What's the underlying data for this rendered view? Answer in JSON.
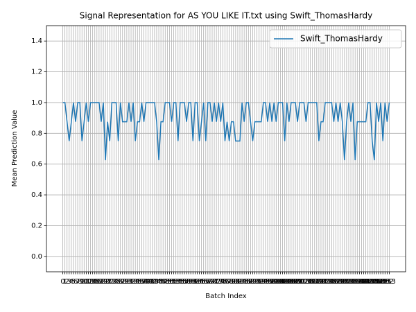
{
  "chart_data": {
    "type": "line",
    "title": "Signal Representation for AS YOU LIKE IT.txt using Swift_ThomasHardy",
    "xlabel": "Batch Index",
    "ylabel": "Mean Prediction Value",
    "x": [
      0,
      1,
      2,
      3,
      4,
      5,
      6,
      7,
      8,
      9,
      10,
      11,
      12,
      13,
      14,
      15,
      16,
      17,
      18,
      19,
      20,
      21,
      22,
      23,
      24,
      25,
      26,
      27,
      28,
      29,
      30,
      31,
      32,
      33,
      34,
      35,
      36,
      37,
      38,
      39,
      40,
      41,
      42,
      43,
      44,
      45,
      46,
      47,
      48,
      49,
      50,
      51,
      52,
      53,
      54,
      55,
      56,
      57,
      58,
      59,
      60,
      61,
      62,
      63,
      64,
      65,
      66,
      67,
      68,
      69,
      70,
      71,
      72,
      73,
      74,
      75,
      76,
      77,
      78,
      79,
      80,
      81,
      82,
      83,
      84,
      85,
      86,
      87,
      88,
      89,
      90,
      91,
      92,
      93,
      94,
      95,
      96,
      97,
      98,
      99,
      100,
      101,
      102,
      103,
      104,
      105,
      106,
      107,
      108,
      109,
      110,
      111,
      112,
      113,
      114,
      115,
      116,
      117,
      118,
      119,
      120,
      121,
      122,
      123,
      124,
      125,
      126,
      127,
      128,
      129,
      130,
      131,
      132,
      133,
      134,
      135,
      136,
      137,
      138,
      139,
      140,
      141,
      142,
      143,
      144,
      145,
      146,
      147,
      148,
      149,
      150,
      151,
      152,
      153
    ],
    "series": [
      {
        "name": "Swift_ThomasHardy",
        "color": "#1f77b4",
        "values": [
          1,
          1,
          0.875,
          0.75,
          0.875,
          1,
          0.875,
          1,
          1,
          0.75,
          0.875,
          1,
          0.875,
          1,
          1,
          1,
          1,
          1,
          0.875,
          1,
          0.625,
          0.875,
          0.75,
          1,
          1,
          1,
          0.75,
          1,
          0.875,
          0.875,
          0.875,
          1,
          0.875,
          1,
          0.75,
          0.875,
          0.875,
          1,
          0.875,
          1,
          1,
          1,
          1,
          1,
          0.875,
          0.625,
          0.875,
          0.875,
          1,
          1,
          1,
          0.875,
          1,
          1,
          0.75,
          1,
          1,
          1,
          0.875,
          1,
          1,
          0.75,
          1,
          1,
          0.75,
          0.875,
          1,
          0.75,
          1,
          1,
          0.875,
          1,
          0.875,
          1,
          0.875,
          1,
          0.75,
          0.875,
          0.75,
          0.875,
          0.875,
          0.75,
          0.75,
          0.75,
          1,
          0.875,
          1,
          1,
          0.875,
          0.75,
          0.875,
          0.875,
          0.875,
          0.875,
          1,
          1,
          0.875,
          1,
          0.875,
          1,
          0.875,
          1,
          1,
          1,
          0.75,
          1,
          0.875,
          1,
          1,
          1,
          0.875,
          1,
          1,
          1,
          0.875,
          1,
          1,
          1,
          1,
          1,
          0.75,
          0.875,
          0.875,
          1,
          1,
          1,
          1,
          0.875,
          1,
          0.875,
          1,
          0.875,
          0.625,
          0.875,
          1,
          0.875,
          1,
          0.625,
          0.875,
          0.875,
          0.875,
          0.875,
          0.875,
          1,
          1,
          0.75,
          0.625,
          1,
          0.875,
          1,
          0.75,
          1,
          0.875,
          1
        ]
      }
    ],
    "xlim": [
      -7.65,
      160.65
    ],
    "xticks": [
      0,
      1,
      2,
      3,
      4,
      5,
      6,
      7,
      8,
      9,
      10,
      11,
      12,
      13,
      14,
      15,
      16,
      17,
      18,
      19,
      20,
      21,
      22,
      23,
      24,
      25,
      26,
      27,
      28,
      29,
      30,
      31,
      32,
      33,
      34,
      35,
      36,
      37,
      38,
      39,
      40,
      41,
      42,
      43,
      44,
      45,
      46,
      47,
      48,
      49,
      50,
      51,
      52,
      53,
      54,
      55,
      56,
      57,
      58,
      59,
      60,
      61,
      62,
      63,
      64,
      65,
      66,
      67,
      68,
      69,
      70,
      71,
      72,
      73,
      74,
      75,
      76,
      77,
      78,
      79,
      80,
      81,
      82,
      83,
      84,
      85,
      86,
      87,
      88,
      89,
      90,
      91,
      92,
      93,
      94,
      95,
      96,
      97,
      98,
      99,
      100,
      101,
      102,
      103,
      104,
      105,
      106,
      107,
      108,
      109,
      110,
      111,
      112,
      113,
      114,
      115,
      116,
      117,
      118,
      119,
      120,
      121,
      122,
      123,
      124,
      125,
      126,
      127,
      128,
      129,
      130,
      131,
      132,
      133,
      134,
      135,
      136,
      137,
      138,
      139,
      140,
      141,
      142,
      143,
      144,
      145,
      146,
      147,
      148,
      149,
      150,
      151,
      152,
      153
    ],
    "ylim": [
      -0.1,
      1.5
    ],
    "yticks": [
      {
        "value": 0,
        "label": "0.0"
      },
      0.2,
      0.4,
      0.6,
      0.8,
      {
        "value": 1,
        "label": "1.0"
      },
      1.2,
      1.4
    ],
    "grid": true,
    "legend": "upper right"
  }
}
